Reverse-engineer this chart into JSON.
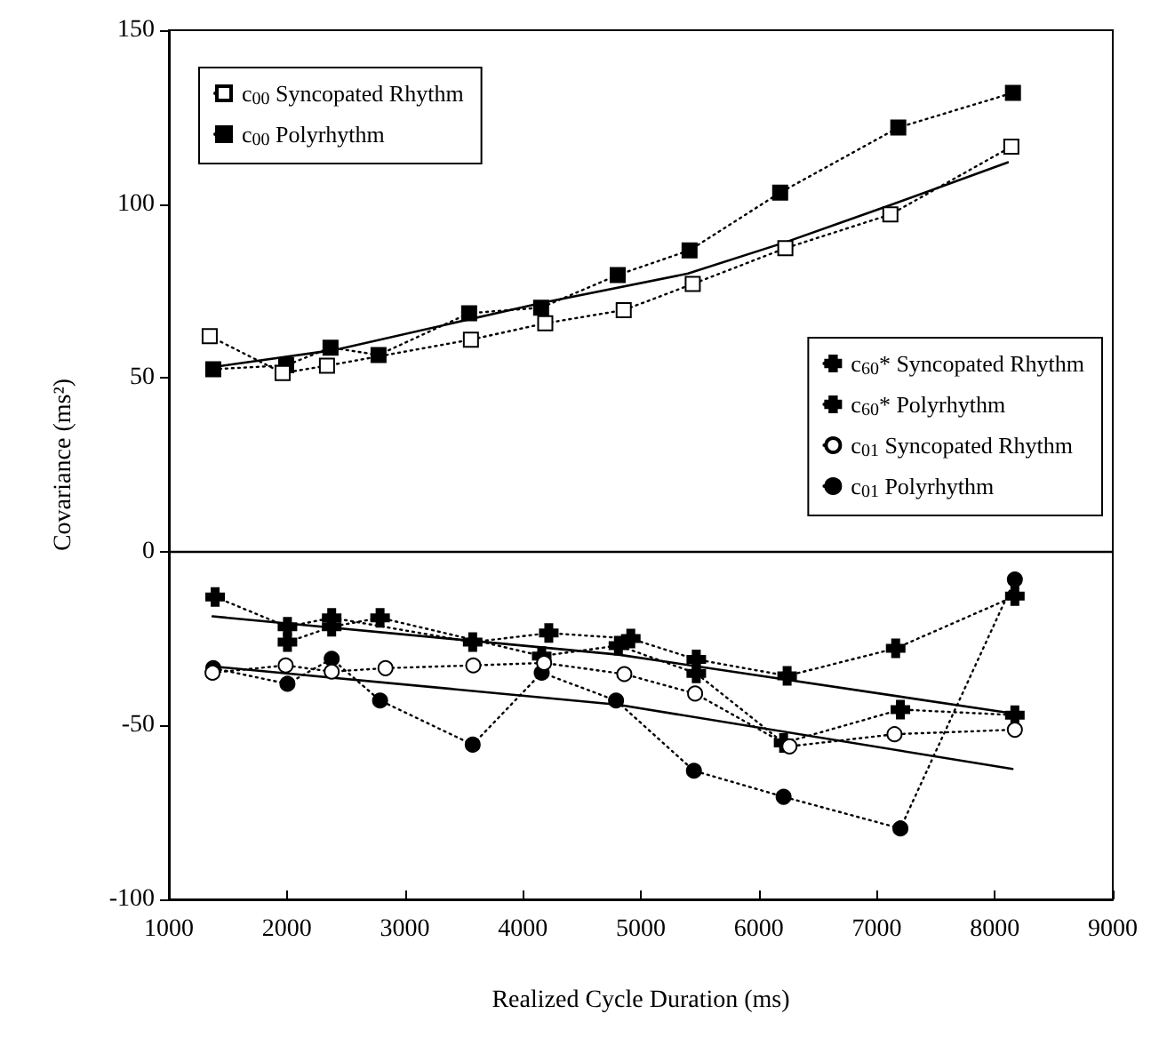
{
  "chart_data": {
    "type": "line",
    "xlabel": "Realized Cycle Duration (ms)",
    "ylabel": "Covariance (ms²)",
    "xlim": [
      1000,
      9000
    ],
    "xticks": [
      1000,
      2000,
      3000,
      4000,
      5000,
      6000,
      7000,
      8000,
      9000
    ],
    "ylim": [
      -100,
      150
    ],
    "yticks": [
      -100,
      -50,
      0,
      50,
      100,
      150
    ],
    "grid": false,
    "legend": [
      "top left",
      "right"
    ],
    "ref_lines": [
      {
        "axis": "y",
        "value": 0,
        "color": "#000000",
        "line_style": "solid"
      }
    ],
    "series": [
      {
        "name": "c$_{00}$ Syncopated Rhythm",
        "marker": "square",
        "line_style": "dotted",
        "color": "#ffffff",
        "x": [
          1346,
          1964,
          2340,
          3560,
          4190,
          4855,
          5440,
          6225,
          7115,
          8140
        ],
        "values": [
          62,
          51.4,
          53.5,
          61,
          65.7,
          69.5,
          77,
          87.3,
          97,
          116.5
        ]
      },
      {
        "name": "c$_{00}$ Polyrhythm",
        "marker": "square",
        "line_style": "dotted",
        "color": "#000000",
        "x": [
          1376,
          1994,
          2370,
          2777,
          3545,
          4155,
          4804,
          5413,
          6181,
          7182,
          8154
        ],
        "values": [
          52.5,
          53.6,
          58.7,
          56.6,
          68.6,
          70.2,
          79.6,
          86.7,
          103.3,
          122,
          132
        ]
      },
      {
        "name": "c$_{60}$* Syncopated Rhythm",
        "marker": "cross",
        "line_style": "dotted",
        "color": "#000000",
        "x": [
          1392,
          2005,
          2380,
          2790,
          3575,
          4220,
          4915,
          5470,
          6240,
          7160,
          8170
        ],
        "values": [
          -13,
          -21.6,
          -19,
          null,
          -26,
          -23.4,
          -25,
          -31,
          -35.7,
          -27.8,
          -12.8
        ]
      },
      {
        "name": "c$_{60}$* Polyrhythm",
        "marker": "cross",
        "line_style": "dotted",
        "color": "#000000",
        "x": [
          2005,
          2380,
          2790,
          3575,
          4160,
          4810,
          5470,
          6210,
          7200,
          8170
        ],
        "values": [
          -26,
          -21.6,
          -19,
          null,
          -30,
          -27,
          -35,
          -55,
          -45.4,
          -47
        ]
      },
      {
        "name": "c$_{01}$ Syncopated Rhythm",
        "marker": "circle",
        "line_style": "dotted",
        "color": "#ffffff",
        "x": [
          1370,
          1990,
          2380,
          2836,
          3580,
          4180,
          4860,
          5460,
          6260,
          7150,
          8170
        ],
        "values": [
          -34.8,
          -32.7,
          -34.5,
          -33.5,
          -32.7,
          -32,
          -35.2,
          -40.8,
          -56,
          -52.5,
          -51.2
        ]
      },
      {
        "name": "c$_{01}$ Polyrhythm",
        "marker": "circle",
        "line_style": "dotted",
        "color": "#000000",
        "x": [
          1376,
          2005,
          2380,
          2790,
          3575,
          4160,
          4790,
          5450,
          6210,
          7200,
          8170
        ],
        "values": [
          -33.5,
          -38,
          -30.8,
          -42.8,
          -55.5,
          -34.8,
          -42.8,
          -63,
          -70.5,
          -79.6,
          -8
        ]
      },
      {
        "marker": "none",
        "line_style": "solid",
        "color": "#000000",
        "x": [
          1350,
          2400,
          4155,
          5400,
          6225,
          7115,
          8110
        ],
        "values": [
          53,
          58,
          71.5,
          80,
          89,
          99.7,
          112
        ]
      },
      {
        "marker": "none",
        "line_style": "solid",
        "color": "#000000",
        "x": [
          1370,
          4810,
          8150
        ],
        "values": [
          -18.6,
          -29.6,
          -46.5
        ]
      },
      {
        "marker": "none",
        "line_style": "solid",
        "color": "#000000",
        "x": [
          1370,
          4810,
          8150
        ],
        "values": [
          -33,
          -44,
          -62.5
        ]
      }
    ]
  }
}
